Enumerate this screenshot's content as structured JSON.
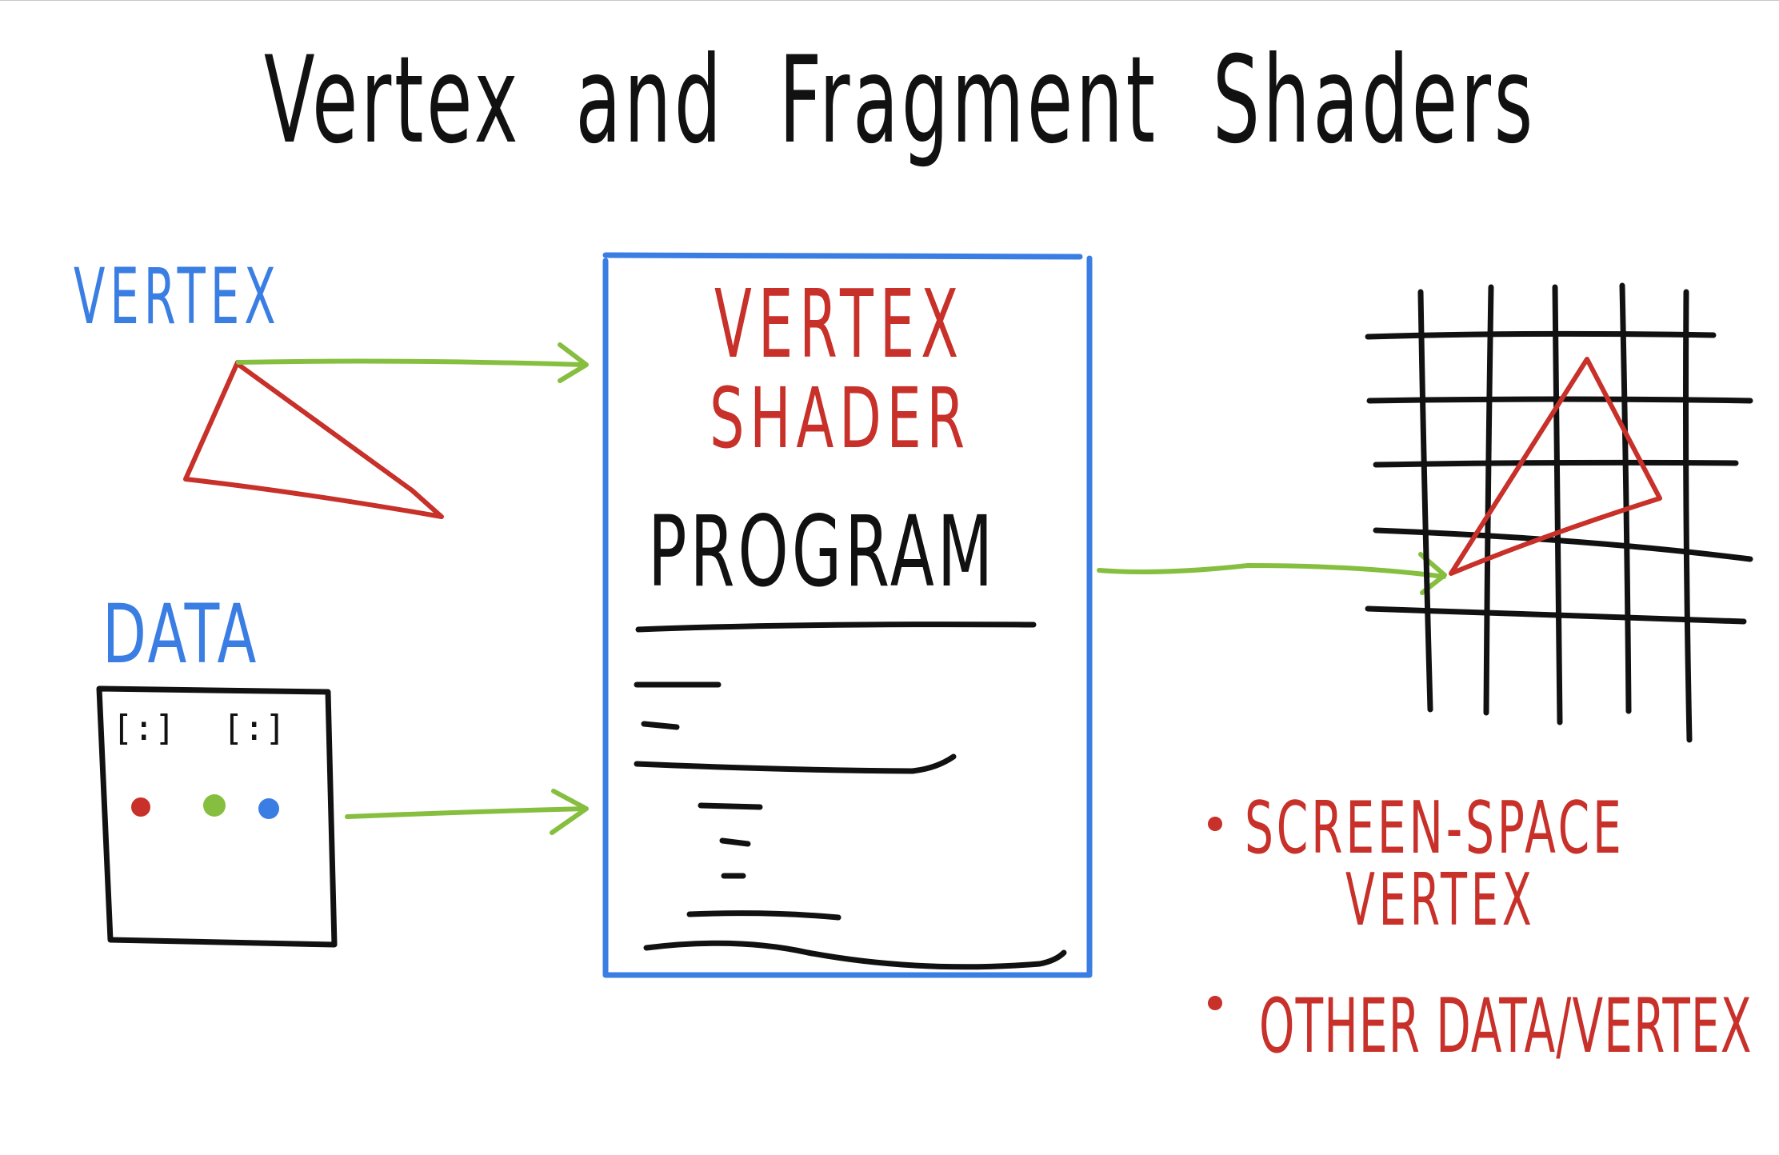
{
  "title": {
    "word1": "Vertex",
    "word2": "and",
    "word3": "Fragment",
    "word4": "Shaders"
  },
  "inputs": {
    "vertex_label": "VERTEX",
    "data_label": "DATA",
    "data_box": {
      "vector1": "[:]",
      "vector2": "[:]"
    }
  },
  "shader_box": {
    "line1": "VERTEX",
    "line2": "SHADER",
    "program_label": "PROGRAM"
  },
  "outputs": {
    "bullet1_line1": "SCREEN-SPACE",
    "bullet1_line2": "VERTEX",
    "bullet2": "OTHER DATA/VERTEX"
  },
  "colors": {
    "ink": "#111111",
    "blue": "#3b7ee3",
    "red": "#c8302a",
    "green": "#86bf3f"
  }
}
